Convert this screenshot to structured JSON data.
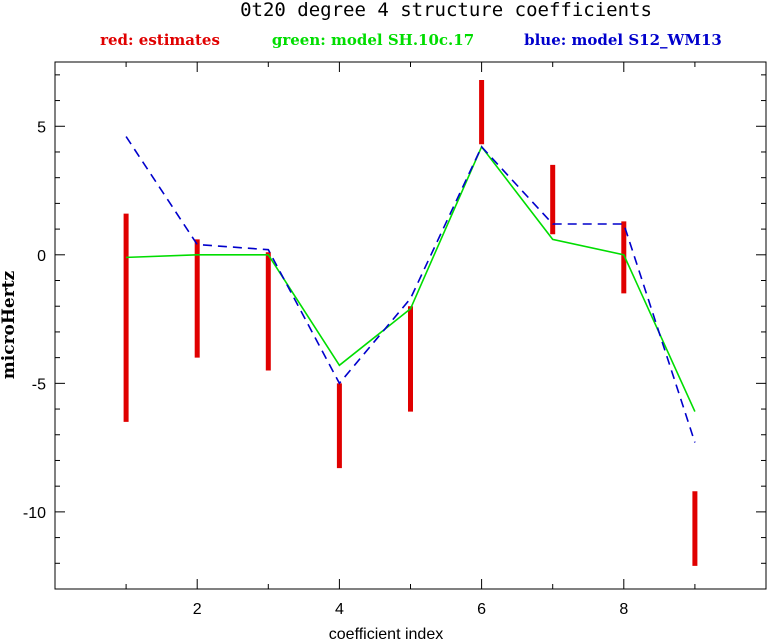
{
  "chart_data": {
    "type": "line",
    "title": "0t20 degree 4 structure coefficients",
    "legend": [
      {
        "text": "red: estimates",
        "color": "#e00000"
      },
      {
        "text": "green: model SH.10c.17",
        "color": "#00dd00"
      },
      {
        "text": "blue: model S12_WM13",
        "color": "#0000cc"
      }
    ],
    "xlabel": "coefficient index",
    "ylabel": "microHertz",
    "xlim": [
      0,
      10
    ],
    "ylim": [
      -13,
      7.5
    ],
    "xticks": [
      2,
      4,
      6,
      8
    ],
    "yticks": [
      5,
      0,
      -5,
      -10
    ],
    "estimates": [
      {
        "x": 1,
        "low": -6.5,
        "high": 1.6
      },
      {
        "x": 2,
        "low": -4.0,
        "high": 0.6
      },
      {
        "x": 3,
        "low": -4.5,
        "high": 0.1
      },
      {
        "x": 4,
        "low": -8.3,
        "high": -5.0
      },
      {
        "x": 5,
        "low": -6.1,
        "high": -2.0
      },
      {
        "x": 6,
        "low": 4.3,
        "high": 6.8
      },
      {
        "x": 7,
        "low": 0.8,
        "high": 3.5
      },
      {
        "x": 8,
        "low": -1.5,
        "high": 1.3
      },
      {
        "x": 9,
        "low": -12.1,
        "high": -9.2
      }
    ],
    "series": [
      {
        "name": "model SH.10c.17",
        "color": "#00dd00",
        "style": "solid",
        "x": [
          1,
          2,
          3,
          4,
          5,
          6,
          7,
          8,
          9
        ],
        "y": [
          -0.1,
          0.0,
          0.0,
          -4.3,
          -2.1,
          4.2,
          0.6,
          0.0,
          -6.1
        ]
      },
      {
        "name": "model S12_WM13",
        "color": "#0000cc",
        "style": "dashed",
        "x": [
          1,
          2,
          3,
          4,
          5,
          6,
          7,
          8,
          9
        ],
        "y": [
          4.6,
          0.4,
          0.2,
          -5.0,
          -1.7,
          4.2,
          1.2,
          1.2,
          -7.3
        ]
      }
    ]
  }
}
